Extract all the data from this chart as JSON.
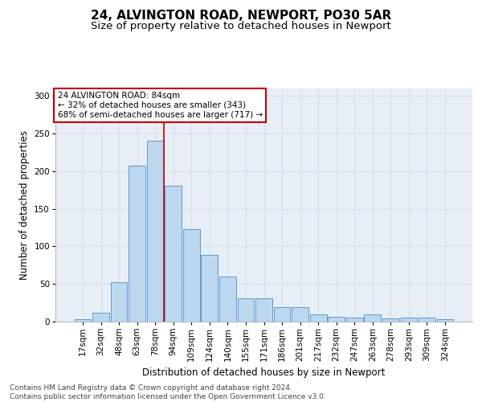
{
  "title1": "24, ALVINGTON ROAD, NEWPORT, PO30 5AR",
  "title2": "Size of property relative to detached houses in Newport",
  "xlabel": "Distribution of detached houses by size in Newport",
  "ylabel": "Number of detached properties",
  "bar_labels": [
    "17sqm",
    "32sqm",
    "48sqm",
    "63sqm",
    "78sqm",
    "94sqm",
    "109sqm",
    "124sqm",
    "140sqm",
    "155sqm",
    "171sqm",
    "186sqm",
    "201sqm",
    "217sqm",
    "232sqm",
    "247sqm",
    "263sqm",
    "278sqm",
    "293sqm",
    "309sqm",
    "324sqm"
  ],
  "bar_values": [
    3,
    12,
    52,
    207,
    240,
    181,
    123,
    89,
    60,
    31,
    31,
    19,
    19,
    10,
    6,
    5,
    10,
    4,
    5,
    5,
    3
  ],
  "bar_color": "#bdd7ee",
  "bar_edge_color": "#5b9bd5",
  "highlight_bin_index": 4,
  "highlight_color": "#c00000",
  "annotation_text": "24 ALVINGTON ROAD: 84sqm\n← 32% of detached houses are smaller (343)\n68% of semi-detached houses are larger (717) →",
  "annotation_box_color": "#ffffff",
  "annotation_box_edge": "#c00000",
  "ylim": [
    0,
    310
  ],
  "yticks": [
    0,
    50,
    100,
    150,
    200,
    250,
    300
  ],
  "grid_color": "#d4dce8",
  "background_color": "#e8eef5",
  "footer": "Contains HM Land Registry data © Crown copyright and database right 2024.\nContains public sector information licensed under the Open Government Licence v3.0.",
  "title1_fontsize": 11,
  "title2_fontsize": 9.5,
  "xlabel_fontsize": 8.5,
  "ylabel_fontsize": 8.5,
  "tick_fontsize": 7.5,
  "annotation_fontsize": 7.5,
  "footer_fontsize": 6.5
}
